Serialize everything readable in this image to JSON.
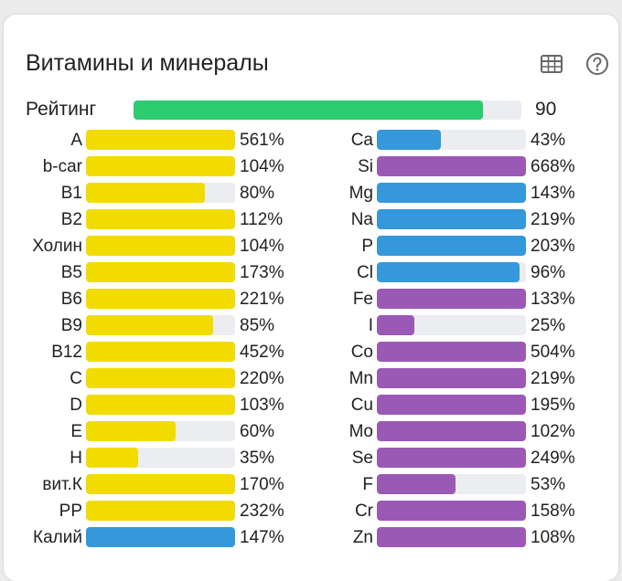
{
  "title": "Витамины и минералы",
  "icons": {
    "table": "table-icon",
    "help": "help-circle-icon"
  },
  "rating": {
    "label": "Рейтинг",
    "value": "90",
    "fraction": 0.9,
    "color": "#2ecc71"
  },
  "colors": {
    "vitamin": "#f2dc00",
    "mineral_blue": "#3498db",
    "mineral_purple": "#9b59b6"
  },
  "left": [
    {
      "label": "A",
      "pct": "561%",
      "fill": 1.0,
      "color": "vitamin"
    },
    {
      "label": "b-car",
      "pct": "104%",
      "fill": 1.0,
      "color": "vitamin"
    },
    {
      "label": "B1",
      "pct": "80%",
      "fill": 0.8,
      "color": "vitamin"
    },
    {
      "label": "B2",
      "pct": "112%",
      "fill": 1.0,
      "color": "vitamin"
    },
    {
      "label": "Холин",
      "pct": "104%",
      "fill": 1.0,
      "color": "vitamin"
    },
    {
      "label": "B5",
      "pct": "173%",
      "fill": 1.0,
      "color": "vitamin"
    },
    {
      "label": "B6",
      "pct": "221%",
      "fill": 1.0,
      "color": "vitamin"
    },
    {
      "label": "B9",
      "pct": "85%",
      "fill": 0.85,
      "color": "vitamin"
    },
    {
      "label": "B12",
      "pct": "452%",
      "fill": 1.0,
      "color": "vitamin"
    },
    {
      "label": "C",
      "pct": "220%",
      "fill": 1.0,
      "color": "vitamin"
    },
    {
      "label": "D",
      "pct": "103%",
      "fill": 1.0,
      "color": "vitamin"
    },
    {
      "label": "E",
      "pct": "60%",
      "fill": 0.6,
      "color": "vitamin"
    },
    {
      "label": "H",
      "pct": "35%",
      "fill": 0.35,
      "color": "vitamin"
    },
    {
      "label": "вит.К",
      "pct": "170%",
      "fill": 1.0,
      "color": "vitamin"
    },
    {
      "label": "PP",
      "pct": "232%",
      "fill": 1.0,
      "color": "vitamin"
    },
    {
      "label": "Калий",
      "pct": "147%",
      "fill": 1.0,
      "color": "mineral_blue"
    }
  ],
  "right": [
    {
      "label": "Ca",
      "pct": "43%",
      "fill": 0.43,
      "color": "mineral_blue"
    },
    {
      "label": "Si",
      "pct": "668%",
      "fill": 1.0,
      "color": "mineral_purple"
    },
    {
      "label": "Mg",
      "pct": "143%",
      "fill": 1.0,
      "color": "mineral_blue"
    },
    {
      "label": "Na",
      "pct": "219%",
      "fill": 1.0,
      "color": "mineral_blue"
    },
    {
      "label": "P",
      "pct": "203%",
      "fill": 1.0,
      "color": "mineral_blue"
    },
    {
      "label": "Cl",
      "pct": "96%",
      "fill": 0.96,
      "color": "mineral_blue"
    },
    {
      "label": "Fe",
      "pct": "133%",
      "fill": 1.0,
      "color": "mineral_purple"
    },
    {
      "label": "I",
      "pct": "25%",
      "fill": 0.25,
      "color": "mineral_purple"
    },
    {
      "label": "Co",
      "pct": "504%",
      "fill": 1.0,
      "color": "mineral_purple"
    },
    {
      "label": "Mn",
      "pct": "219%",
      "fill": 1.0,
      "color": "mineral_purple"
    },
    {
      "label": "Cu",
      "pct": "195%",
      "fill": 1.0,
      "color": "mineral_purple"
    },
    {
      "label": "Mo",
      "pct": "102%",
      "fill": 1.0,
      "color": "mineral_purple"
    },
    {
      "label": "Se",
      "pct": "249%",
      "fill": 1.0,
      "color": "mineral_purple"
    },
    {
      "label": "F",
      "pct": "53%",
      "fill": 0.53,
      "color": "mineral_purple"
    },
    {
      "label": "Cr",
      "pct": "158%",
      "fill": 1.0,
      "color": "mineral_purple"
    },
    {
      "label": "Zn",
      "pct": "108%",
      "fill": 1.0,
      "color": "mineral_purple"
    }
  ]
}
